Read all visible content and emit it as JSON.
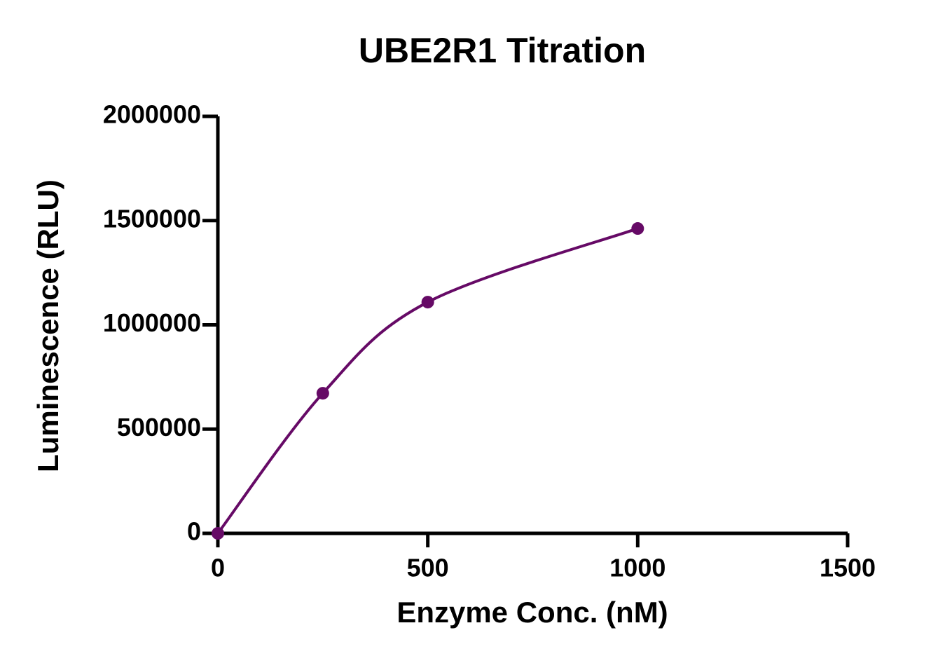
{
  "chart_data": {
    "type": "line",
    "title": "UBE2R1 Titration",
    "x_label": "Enzyme Conc. (nM)",
    "y_label": "Luminescence (RLU)",
    "x": [
      0,
      250,
      500,
      1000
    ],
    "series": [
      {
        "color": "#660a66",
        "values": [
          0,
          672000,
          1109000,
          1462000
        ]
      }
    ],
    "xlim": [
      0,
      1500
    ],
    "xticks": [
      0,
      500,
      1000,
      1500
    ],
    "ylim": [
      0,
      2000000
    ],
    "yticks": [
      0,
      500000,
      1000000,
      1500000,
      2000000
    ],
    "grid": false,
    "smooth": true,
    "markers": true
  }
}
